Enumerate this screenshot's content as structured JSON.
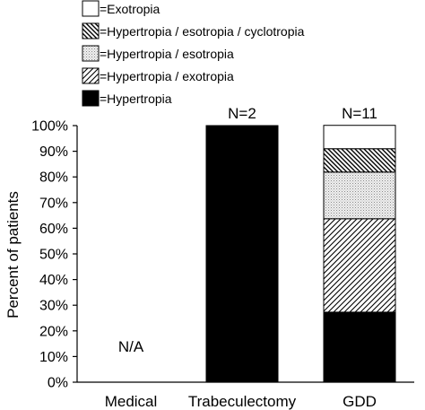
{
  "chart_data": {
    "type": "bar",
    "stacked": true,
    "categories": [
      "Medical",
      "Trabeculectomy",
      "GDD"
    ],
    "ylabel": "Percent of patients",
    "ylim": [
      0,
      100
    ],
    "yticks": [
      0,
      10,
      20,
      30,
      40,
      50,
      60,
      70,
      80,
      90,
      100
    ],
    "ytick_labels": [
      "0%",
      "10%",
      "20%",
      "30%",
      "40%",
      "50%",
      "60%",
      "70%",
      "80%",
      "90%",
      "100%"
    ],
    "bar_annotations": [
      "N/A",
      "N=2",
      "N=11"
    ],
    "legend_position": "top-left",
    "series": [
      {
        "name": "=Hypertropia",
        "pattern": "solid-black",
        "values": [
          0,
          100,
          27.3
        ]
      },
      {
        "name": "=Hypertropia / exotropia",
        "pattern": "forward-diagonal",
        "values": [
          0,
          0,
          36.4
        ]
      },
      {
        "name": "=Hypertropia / esotropia",
        "pattern": "light-dots",
        "values": [
          0,
          0,
          18.2
        ]
      },
      {
        "name": "=Hypertropia / esotropia / cyclotropia",
        "pattern": "backward-diagonal",
        "values": [
          0,
          0,
          9.1
        ]
      },
      {
        "name": "=Exotropia",
        "pattern": "white",
        "values": [
          0,
          0,
          9.1
        ]
      }
    ],
    "legend_order": [
      "=Exotropia",
      "=Hypertropia / esotropia / cyclotropia",
      "=Hypertropia / esotropia",
      "=Hypertropia / exotropia",
      "=Hypertropia"
    ],
    "grid": false
  }
}
